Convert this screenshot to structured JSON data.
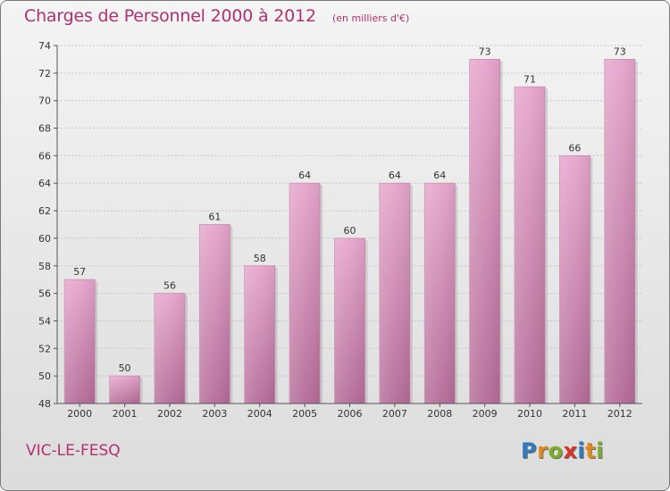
{
  "header": {
    "title": "Charges de Personnel 2000 à 2012",
    "subtitle": "(en milliers d'€)"
  },
  "footer": {
    "commune": "VIC-LE-FESQ",
    "logo_letters": [
      "P",
      "r",
      "o",
      "x",
      "i",
      "t",
      "i"
    ],
    "logo_colors": [
      "#2e7bbf",
      "#e08a1e",
      "#7fae2a",
      "#d8342c",
      "#2e7bbf",
      "#e08a1e",
      "#7fae2a"
    ]
  },
  "colors": {
    "accent": "#b03070",
    "bar_top": "#e6a6cc",
    "bar_bottom": "#b46c98"
  },
  "chart_data": {
    "type": "bar",
    "categories": [
      "2000",
      "2001",
      "2002",
      "2003",
      "2004",
      "2005",
      "2006",
      "2007",
      "2008",
      "2009",
      "2010",
      "2011",
      "2012"
    ],
    "values": [
      57,
      50,
      56,
      61,
      58,
      64,
      60,
      64,
      64,
      73,
      71,
      66,
      73
    ],
    "ylim": [
      48,
      74
    ],
    "yticks": [
      48,
      50,
      52,
      54,
      56,
      58,
      60,
      62,
      64,
      66,
      68,
      70,
      72,
      74
    ],
    "grid": true
  }
}
